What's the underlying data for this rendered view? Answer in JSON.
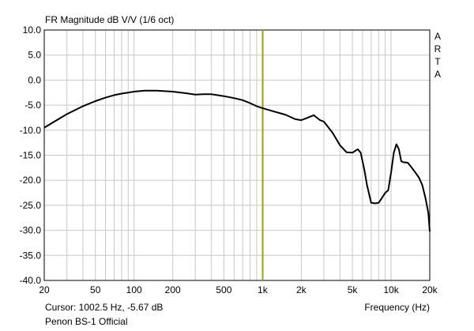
{
  "header": {
    "title": "FR Magnitude dB V/V (1/6 oct)"
  },
  "brand": {
    "letters": [
      "A",
      "R",
      "T",
      "A"
    ]
  },
  "footer": {
    "cursor_text": "Cursor: 1002.5 Hz, -5.67 dB",
    "device_text": "Penon BS-1 Official",
    "xlabel": "Frequency (Hz)"
  },
  "colors": {
    "curve": "#000000",
    "cursor": "#a0a000",
    "grid": "#c8c8c8",
    "background": "#ffffff"
  },
  "chart_data": {
    "type": "line",
    "title": "FR Magnitude dB V/V (1/6 oct)",
    "xlabel": "Frequency (Hz)",
    "ylabel": "",
    "xscale": "log",
    "xlim": [
      20,
      20000
    ],
    "ylim": [
      -40,
      10
    ],
    "grid": true,
    "x_ticks": [
      {
        "value": 20,
        "label": "20"
      },
      {
        "value": 50,
        "label": "50"
      },
      {
        "value": 100,
        "label": "100"
      },
      {
        "value": 200,
        "label": "200"
      },
      {
        "value": 500,
        "label": "500"
      },
      {
        "value": 1000,
        "label": "1k"
      },
      {
        "value": 2000,
        "label": "2k"
      },
      {
        "value": 5000,
        "label": "5k"
      },
      {
        "value": 10000,
        "label": "10k"
      },
      {
        "value": 20000,
        "label": "20k"
      }
    ],
    "y_ticks": [
      {
        "value": 10,
        "label": "10.0"
      },
      {
        "value": 5,
        "label": "5.0"
      },
      {
        "value": 0,
        "label": "0.0"
      },
      {
        "value": -5,
        "label": "-5.0"
      },
      {
        "value": -10,
        "label": "-10.0"
      },
      {
        "value": -15,
        "label": "-15.0"
      },
      {
        "value": -20,
        "label": "-20.0"
      },
      {
        "value": -25,
        "label": "-25.0"
      },
      {
        "value": -30,
        "label": "-30.0"
      },
      {
        "value": -35,
        "label": "-35.0"
      },
      {
        "value": -40,
        "label": "-40.0"
      }
    ],
    "cursor": {
      "x": 1002.5,
      "y": -5.67
    },
    "series": [
      {
        "x": [
          20,
          25,
          30,
          40,
          50,
          60,
          70,
          80,
          100,
          120,
          150,
          200,
          250,
          300,
          350,
          400,
          500,
          600,
          700,
          800,
          900,
          1000,
          1200,
          1500,
          1800,
          2000,
          2200,
          2500,
          2800,
          3000,
          3500,
          4000,
          4500,
          5000,
          5500,
          5800,
          6200,
          6500,
          7000,
          7500,
          8000,
          8500,
          9000,
          9500,
          10000,
          10500,
          11000,
          11500,
          12000,
          12500,
          13500,
          14500,
          15500,
          16500,
          17500,
          18500,
          19500,
          20000
        ],
        "y": [
          -9.5,
          -8.0,
          -6.8,
          -5.2,
          -4.2,
          -3.5,
          -3.0,
          -2.7,
          -2.3,
          -2.1,
          -2.1,
          -2.3,
          -2.6,
          -2.9,
          -2.8,
          -2.8,
          -3.2,
          -3.6,
          -4.0,
          -4.6,
          -5.2,
          -5.6,
          -6.2,
          -6.9,
          -7.8,
          -8.0,
          -7.6,
          -7.0,
          -8.0,
          -8.3,
          -10.5,
          -13.0,
          -14.4,
          -14.5,
          -13.8,
          -14.5,
          -18.0,
          -21.0,
          -24.5,
          -24.6,
          -24.5,
          -23.5,
          -22.5,
          -22.0,
          -18.5,
          -14.5,
          -12.8,
          -13.8,
          -16.2,
          -16.4,
          -16.5,
          -17.5,
          -18.5,
          -19.5,
          -21.0,
          -23.5,
          -26.5,
          -30.2
        ]
      }
    ]
  }
}
